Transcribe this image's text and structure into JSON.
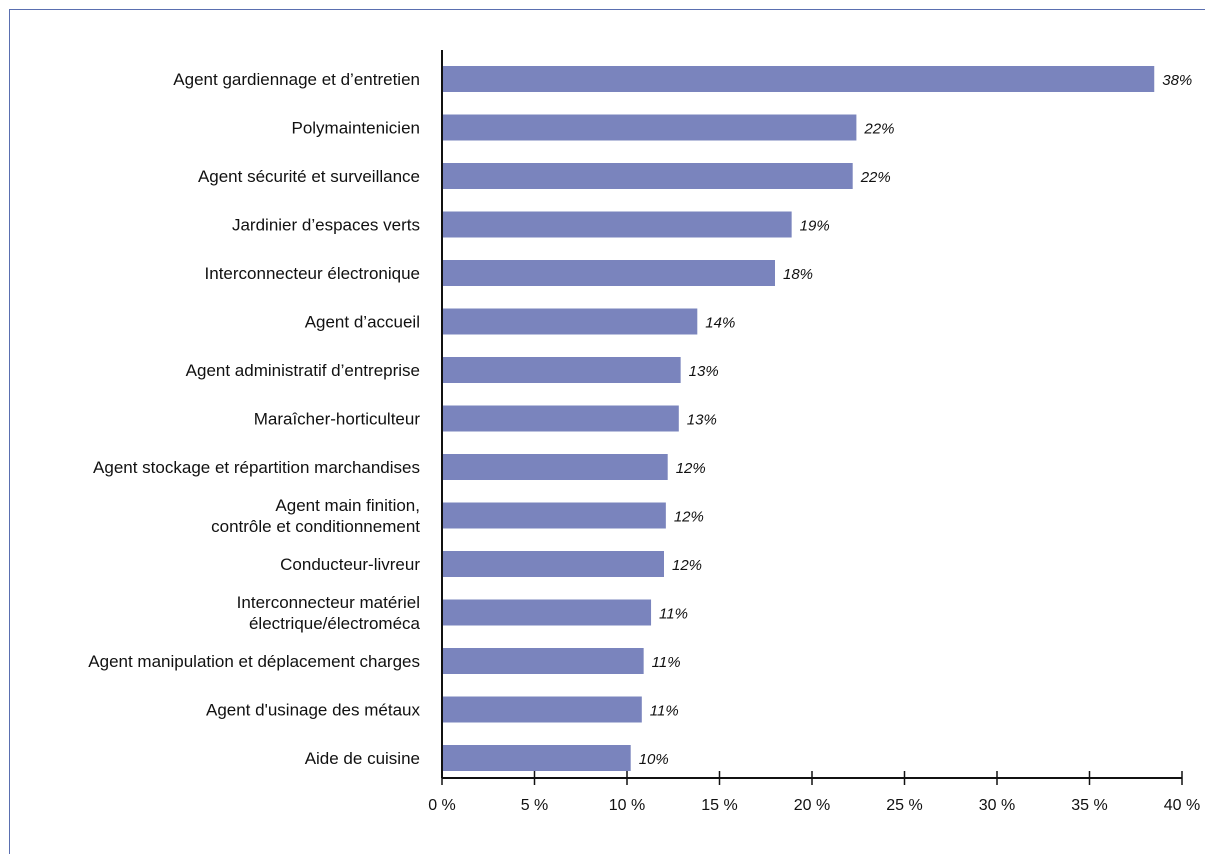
{
  "chart_data": {
    "type": "bar",
    "orientation": "horizontal",
    "categories": [
      [
        "Agent gardiennage et d’entretien"
      ],
      [
        "Polymaintenicien"
      ],
      [
        "Agent sécurité et surveillance"
      ],
      [
        "Jardinier d’espaces verts"
      ],
      [
        "Interconnecteur électronique"
      ],
      [
        "Agent d’accueil"
      ],
      [
        "Agent administratif d’entreprise"
      ],
      [
        "Maraîcher-horticulteur"
      ],
      [
        "Agent stockage et répartition marchandises"
      ],
      [
        "Agent main finition,",
        "contrôle et conditionnement"
      ],
      [
        "Conducteur-livreur"
      ],
      [
        "Interconnecteur matériel",
        "électrique/électroméca"
      ],
      [
        "Agent manipulation et déplacement charges"
      ],
      [
        "Agent d'usinage des métaux"
      ],
      [
        "Aide de cuisine"
      ]
    ],
    "values": [
      38.5,
      22.4,
      22.2,
      18.9,
      18.0,
      13.8,
      12.9,
      12.8,
      12.2,
      12.1,
      12.0,
      11.3,
      10.9,
      10.8,
      10.2
    ],
    "value_labels": [
      "38%",
      "22%",
      "22%",
      "19%",
      "18%",
      "14%",
      "13%",
      "13%",
      "12%",
      "12%",
      "12%",
      "11%",
      "11%",
      "11%",
      "10%"
    ],
    "xlim": [
      0,
      40
    ],
    "xticks": [
      0,
      5,
      10,
      15,
      20,
      25,
      30,
      35,
      40
    ],
    "xtick_labels": [
      "0 %",
      "5 %",
      "10 %",
      "15 %",
      "20 %",
      "25 %",
      "30 %",
      "35 %",
      "40 %"
    ],
    "title": "",
    "xlabel": "",
    "ylabel": "",
    "grid": false,
    "legend": "none",
    "colors": {
      "bar": "#7a84bd",
      "axis": "#111111",
      "frame": "#5a6fb0"
    }
  }
}
